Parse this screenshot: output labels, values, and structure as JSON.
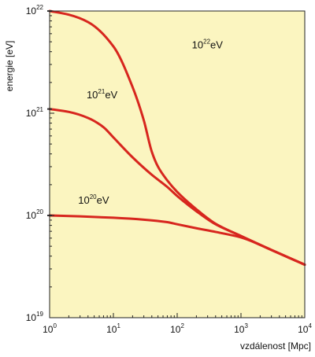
{
  "chart_data": {
    "type": "line",
    "title": "",
    "xlabel": "vzdálenost [Mpc]",
    "ylabel": "energie [eV]",
    "xscale": "log",
    "yscale": "log",
    "xlim": [
      1,
      10000
    ],
    "ylim": [
      1e+19,
      1e+22
    ],
    "grid": false,
    "background_color": "#fbf5c0",
    "line_color": "#d7261e",
    "x_ticks": [
      {
        "base": "10",
        "exp": "0",
        "value": 1
      },
      {
        "base": "10",
        "exp": "1",
        "value": 10
      },
      {
        "base": "10",
        "exp": "2",
        "value": 100
      },
      {
        "base": "10",
        "exp": "3",
        "value": 1000
      },
      {
        "base": "10",
        "exp": "4",
        "value": 10000
      }
    ],
    "y_ticks": [
      {
        "base": "10",
        "exp": "19",
        "value": 1e+19
      },
      {
        "base": "10",
        "exp": "20",
        "value": 1e+20
      },
      {
        "base": "10",
        "exp": "21",
        "value": 1e+21
      },
      {
        "base": "10",
        "exp": "22",
        "value": 1e+22
      }
    ],
    "series": [
      {
        "label_base": "10",
        "label_exp": "22",
        "label_unit": "eV",
        "label_at": [
          170,
          4.3e+21
        ],
        "x": [
          1,
          2,
          4,
          10,
          20,
          30,
          40,
          50,
          70,
          100,
          200,
          400,
          1000,
          3000,
          10000
        ],
        "y": [
          1e+22,
          9.2e+21,
          7.8e+21,
          4.5e+21,
          1.8e+21,
          8.5e+20,
          4.2e+20,
          3e+20,
          2.2e+20,
          1.7e+20,
          1.15e+20,
          8.3e+19,
          6.3e+19,
          4.6e+19,
          3.3e+19
        ]
      },
      {
        "label_base": "10",
        "label_exp": "21",
        "label_unit": "eV",
        "label_at": [
          3.8,
          1.4e+21
        ],
        "x": [
          1,
          2,
          4,
          7,
          10,
          20,
          40,
          70,
          100,
          200,
          400,
          1000,
          3000,
          10000
        ],
        "y": [
          1.1e+21,
          1.03e+21,
          9e+20,
          7.3e+20,
          5.8e+20,
          3.7e+20,
          2.5e+20,
          1.9e+20,
          1.55e+20,
          1.1e+20,
          8.2e+19,
          6.3e+19,
          4.6e+19,
          3.3e+19
        ]
      },
      {
        "label_base": "10",
        "label_exp": "20",
        "label_unit": "eV",
        "label_at": [
          2.8,
          1.3e+20
        ],
        "x": [
          1,
          3,
          10,
          30,
          70,
          100,
          200,
          400,
          1000,
          3000,
          10000
        ],
        "y": [
          1e+20,
          9.8e+19,
          9.5e+19,
          9.1e+19,
          8.6e+19,
          8.2e+19,
          7.5e+19,
          6.9e+19,
          6.1e+19,
          4.6e+19,
          3.3e+19
        ]
      }
    ]
  }
}
